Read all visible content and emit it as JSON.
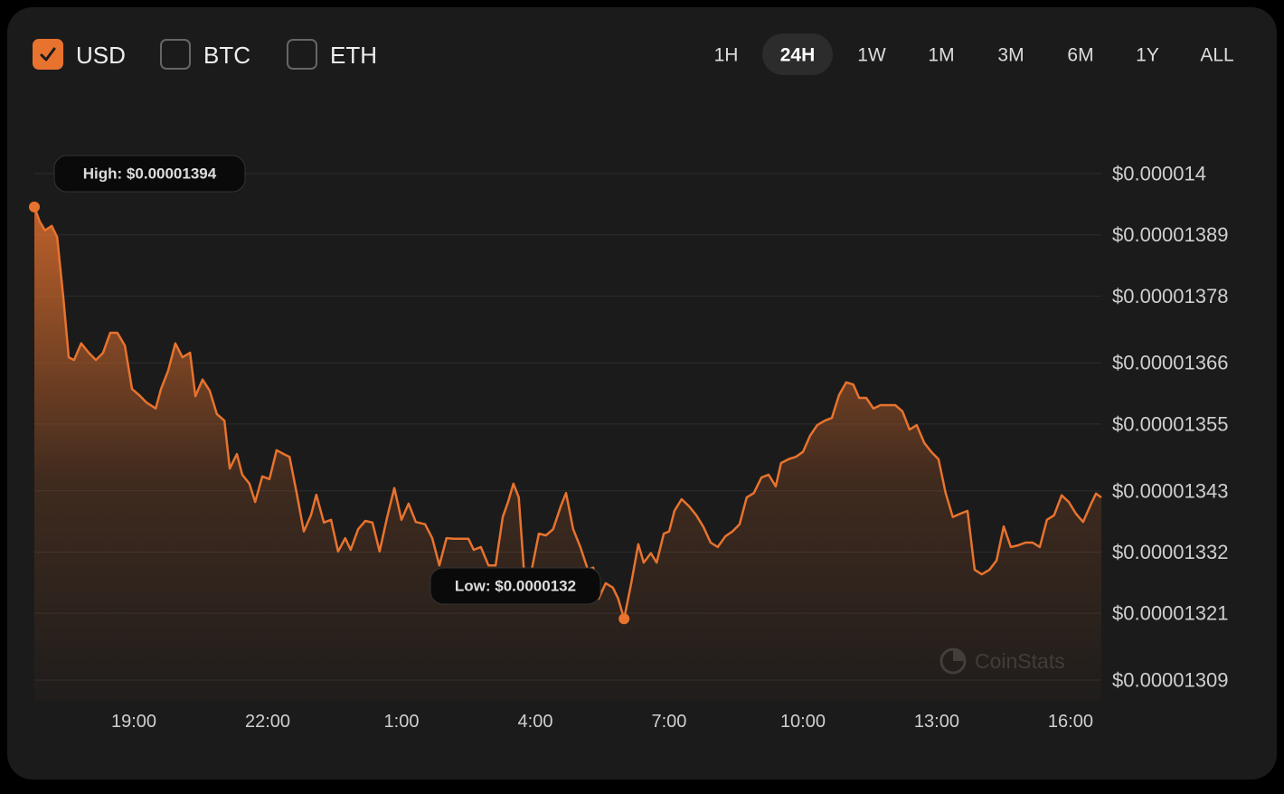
{
  "currencies": [
    {
      "label": "USD",
      "checked": true
    },
    {
      "label": "BTC",
      "checked": false
    },
    {
      "label": "ETH",
      "checked": false
    }
  ],
  "ranges": [
    {
      "label": "1H",
      "active": false
    },
    {
      "label": "24H",
      "active": true
    },
    {
      "label": "1W",
      "active": false
    },
    {
      "label": "1M",
      "active": false
    },
    {
      "label": "3M",
      "active": false
    },
    {
      "label": "6M",
      "active": false
    },
    {
      "label": "1Y",
      "active": false
    },
    {
      "label": "ALL",
      "active": false
    }
  ],
  "chart_data": {
    "type": "area",
    "color": "#e8732e",
    "watermark": "CoinStats",
    "high_label": "High: $0.00001394",
    "low_label": "Low: $0.0000132",
    "xlim": [
      16.77,
      40.69
    ],
    "xticks": [
      {
        "value": 19,
        "label": "19:00"
      },
      {
        "value": 22,
        "label": "22:00"
      },
      {
        "value": 25,
        "label": "1:00"
      },
      {
        "value": 28,
        "label": "4:00"
      },
      {
        "value": 31,
        "label": "7:00"
      },
      {
        "value": 34,
        "label": "10:00"
      },
      {
        "value": 37,
        "label": "13:00"
      },
      {
        "value": 40,
        "label": "16:00"
      }
    ],
    "ylim": [
      1.30526e-05,
      1.4117e-05
    ],
    "yticks": [
      {
        "value": 1.4e-05,
        "label": "$0.000014"
      },
      {
        "value": 1.389e-05,
        "label": "$0.00001389"
      },
      {
        "value": 1.378e-05,
        "label": "$0.00001378"
      },
      {
        "value": 1.366e-05,
        "label": "$0.00001366"
      },
      {
        "value": 1.355e-05,
        "label": "$0.00001355"
      },
      {
        "value": 1.343e-05,
        "label": "$0.00001343"
      },
      {
        "value": 1.332e-05,
        "label": "$0.00001332"
      },
      {
        "value": 1.321e-05,
        "label": "$0.00001321"
      },
      {
        "value": 1.309e-05,
        "label": "$0.00001309"
      }
    ],
    "grid": true,
    "x": [
      16.77,
      16.89,
      17.01,
      17.16,
      17.28,
      17.42,
      17.54,
      17.66,
      17.82,
      17.99,
      18.15,
      18.31,
      18.47,
      18.63,
      18.8,
      18.96,
      19.12,
      19.28,
      19.49,
      19.61,
      19.77,
      19.93,
      20.09,
      20.26,
      20.38,
      20.54,
      20.7,
      20.86,
      21.03,
      21.15,
      21.31,
      21.43,
      21.59,
      21.72,
      21.88,
      22.04,
      22.2,
      22.36,
      22.49,
      22.65,
      22.81,
      22.97,
      23.09,
      23.26,
      23.42,
      23.58,
      23.74,
      23.86,
      24.03,
      24.19,
      24.35,
      24.51,
      24.68,
      24.84,
      25.0,
      25.16,
      25.32,
      25.53,
      25.69,
      25.85,
      26.01,
      26.18,
      26.34,
      26.5,
      26.62,
      26.78,
      26.95,
      27.11,
      27.27,
      27.39,
      27.51,
      27.63,
      27.76,
      27.92,
      28.08,
      28.24,
      28.4,
      28.57,
      28.69,
      28.85,
      29.01,
      29.18,
      29.3,
      29.42,
      29.58,
      29.74,
      29.86,
      29.99,
      30.15,
      30.31,
      30.43,
      30.59,
      30.72,
      30.88,
      31.0,
      31.12,
      31.28,
      31.45,
      31.61,
      31.77,
      31.93,
      32.09,
      32.26,
      32.42,
      32.58,
      32.74,
      32.9,
      33.07,
      33.23,
      33.39,
      33.51,
      33.68,
      33.84,
      34.0,
      34.16,
      34.32,
      34.49,
      34.65,
      34.81,
      34.97,
      35.13,
      35.26,
      35.42,
      35.58,
      35.74,
      35.9,
      36.07,
      36.23,
      36.39,
      36.55,
      36.72,
      36.88,
      37.04,
      37.2,
      37.36,
      37.53,
      37.69,
      37.85,
      38.01,
      38.18,
      38.34,
      38.5,
      38.66,
      38.82,
      38.99,
      39.15,
      39.31,
      39.47,
      39.63,
      39.8,
      39.96,
      40.12,
      40.28,
      40.45,
      40.57,
      40.69
    ],
    "values": [
      1.394e-05,
      1.3914e-05,
      1.3898e-05,
      1.3906e-05,
      1.3886e-05,
      1.3776e-05,
      1.367e-05,
      1.3665e-05,
      1.3695e-05,
      1.3678e-05,
      1.3665e-05,
      1.3678e-05,
      1.3714e-05,
      1.3714e-05,
      1.3691e-05,
      1.3613e-05,
      1.3602e-05,
      1.3589e-05,
      1.3578e-05,
      1.3613e-05,
      1.3646e-05,
      1.3695e-05,
      1.367e-05,
      1.3678e-05,
      1.36e-05,
      1.363e-05,
      1.361e-05,
      1.3568e-05,
      1.3556e-05,
      1.347e-05,
      1.3496e-05,
      1.3459e-05,
      1.3443e-05,
      1.341e-05,
      1.3456e-05,
      1.3451e-05,
      1.3503e-05,
      1.3496e-05,
      1.3491e-05,
      1.3426e-05,
      1.3357e-05,
      1.3386e-05,
      1.3423e-05,
      1.3373e-05,
      1.3378e-05,
      1.3321e-05,
      1.3345e-05,
      1.3324e-05,
      1.3361e-05,
      1.3376e-05,
      1.3373e-05,
      1.3321e-05,
      1.3383e-05,
      1.3435e-05,
      1.3378e-05,
      1.3407e-05,
      1.3374e-05,
      1.337e-05,
      1.3345e-05,
      1.3296e-05,
      1.3345e-05,
      1.3344e-05,
      1.3344e-05,
      1.3344e-05,
      1.3324e-05,
      1.3329e-05,
      1.3296e-05,
      1.3296e-05,
      1.3383e-05,
      1.341e-05,
      1.3443e-05,
      1.3418e-05,
      1.3272e-05,
      1.3288e-05,
      1.3353e-05,
      1.335e-05,
      1.3361e-05,
      1.3402e-05,
      1.3426e-05,
      1.3361e-05,
      1.3329e-05,
      1.3288e-05,
      1.3292e-05,
      1.3236e-05,
      1.3264e-05,
      1.3256e-05,
      1.3236e-05,
      1.32e-05,
      1.3264e-05,
      1.3334e-05,
      1.3301e-05,
      1.3318e-05,
      1.3301e-05,
      1.3353e-05,
      1.3357e-05,
      1.3394e-05,
      1.3415e-05,
      1.3402e-05,
      1.3386e-05,
      1.3365e-05,
      1.3337e-05,
      1.3329e-05,
      1.3348e-05,
      1.3357e-05,
      1.337e-05,
      1.3418e-05,
      1.3426e-05,
      1.3454e-05,
      1.3459e-05,
      1.3438e-05,
      1.348e-05,
      1.3487e-05,
      1.3491e-05,
      1.35e-05,
      1.3529e-05,
      1.3548e-05,
      1.3556e-05,
      1.3561e-05,
      1.3602e-05,
      1.3625e-05,
      1.3621e-05,
      1.3597e-05,
      1.3597e-05,
      1.3578e-05,
      1.3584e-05,
      1.3584e-05,
      1.3584e-05,
      1.3573e-05,
      1.354e-05,
      1.3548e-05,
      1.3516e-05,
      1.35e-05,
      1.3487e-05,
      1.3426e-05,
      1.3383e-05,
      1.3389e-05,
      1.3394e-05,
      1.3288e-05,
      1.328e-05,
      1.3288e-05,
      1.3305e-05,
      1.3366e-05,
      1.3329e-05,
      1.3332e-05,
      1.3337e-05,
      1.3337e-05,
      1.3329e-05,
      1.3378e-05,
      1.3386e-05,
      1.3422e-05,
      1.341e-05,
      1.3389e-05,
      1.3374e-05,
      1.3405e-05,
      1.3425e-05,
      1.3418e-05
    ]
  }
}
